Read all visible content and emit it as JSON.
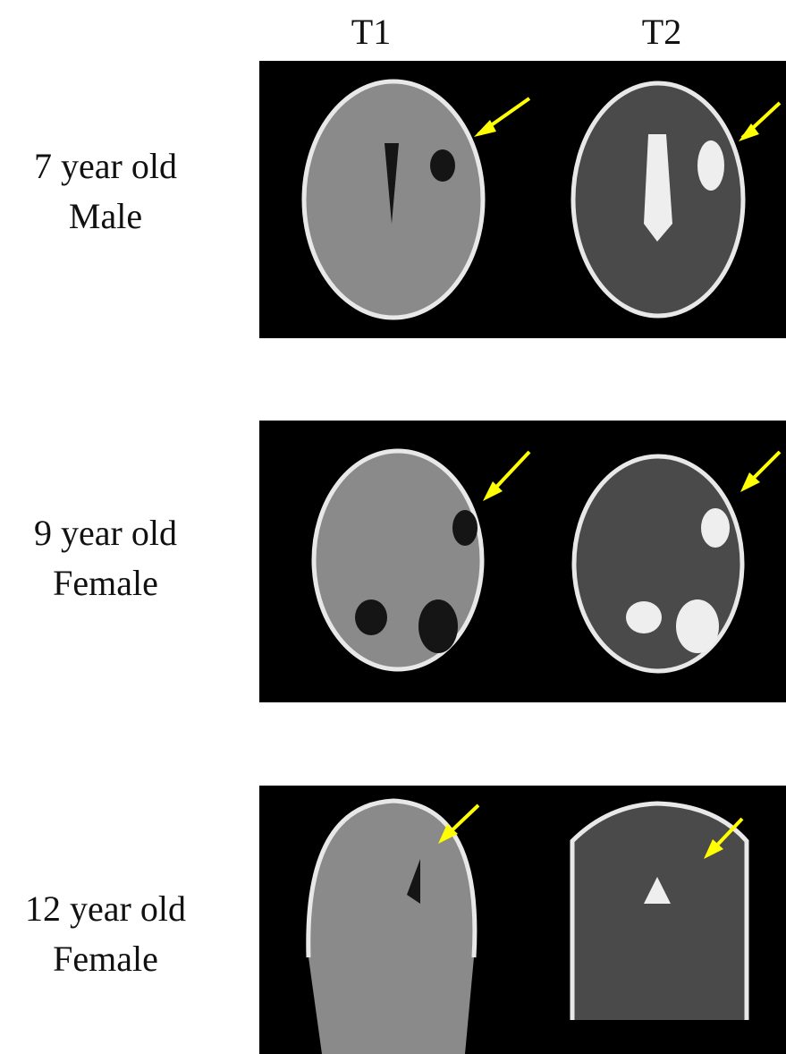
{
  "columns": [
    "T1",
    "T2"
  ],
  "rows": [
    {
      "lines": [
        "7 year old",
        "Male"
      ]
    },
    {
      "lines": [
        "9 year old",
        "Female"
      ]
    },
    {
      "lines": [
        "12 year old",
        "Female"
      ]
    }
  ]
}
